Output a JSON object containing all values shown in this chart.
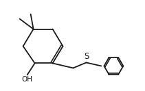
{
  "bg_color": "#ffffff",
  "line_color": "#1a1a1a",
  "line_width": 1.3,
  "font_size_OH": 7.5,
  "font_size_S": 8.5,
  "OH_label": "OH",
  "S_label": "S",
  "figsize": [
    2.11,
    1.33
  ],
  "dpi": 100,
  "xlim": [
    0.0,
    10.5
  ],
  "ylim": [
    0.8,
    6.8
  ]
}
